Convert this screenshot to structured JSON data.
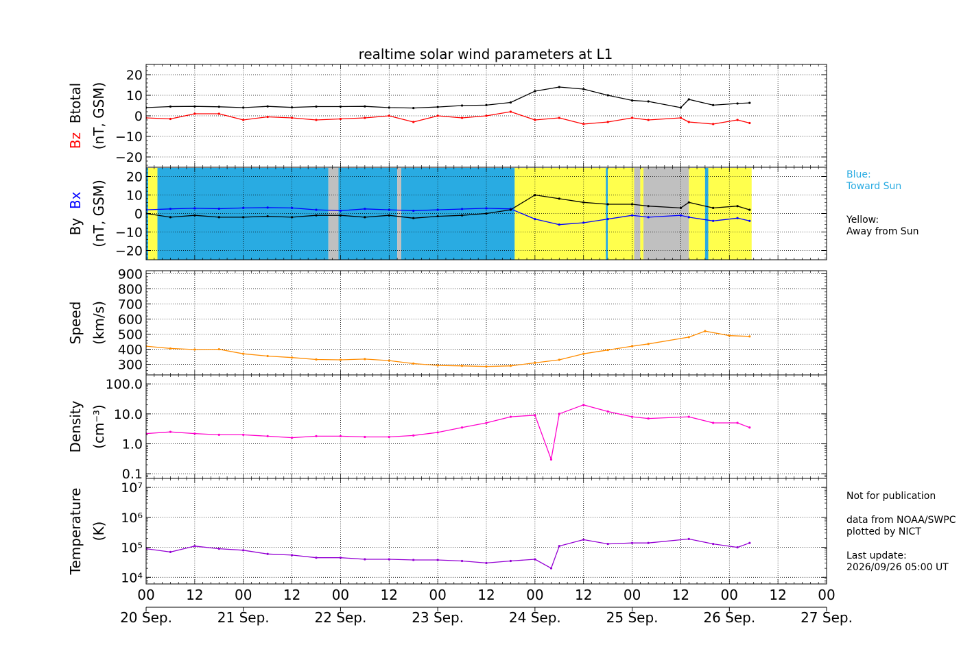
{
  "chart_data": {
    "type": "line",
    "title": "realtime solar wind parameters at L1",
    "time_axis": {
      "unit": "hours since 20 Sep. 00 UT",
      "range": [
        0,
        168
      ],
      "hour_ticks": [
        0,
        12,
        24,
        36,
        48,
        60,
        72,
        84,
        96,
        108,
        120,
        132,
        144,
        156,
        168
      ],
      "hour_labels": [
        "00",
        "12",
        "00",
        "12",
        "00",
        "12",
        "00",
        "12",
        "00",
        "12",
        "00",
        "12",
        "00",
        "12",
        "00"
      ],
      "day_labels": [
        "20 Sep.",
        "21 Sep.",
        "22 Sep.",
        "23 Sep.",
        "24 Sep.",
        "25 Sep.",
        "26 Sep.",
        "27 Sep."
      ]
    },
    "panels": [
      {
        "id": "mag",
        "ylabel_parts": [
          {
            "text": "Bz",
            "color": "#ff0000"
          },
          {
            "text": "Btotal",
            "color": "#000000"
          }
        ],
        "ylabel_unit": "(nT, GSM)",
        "scale": "linear",
        "ylim": [
          -25,
          25
        ],
        "ticks": [
          -20,
          -10,
          0,
          10,
          20
        ],
        "tick_labels": [
          "−20",
          "−10",
          "0",
          "10",
          "20"
        ],
        "series": [
          {
            "name": "Btotal",
            "color": "#000000",
            "t": [
              0,
              6,
              12,
              18,
              24,
              30,
              36,
              42,
              48,
              54,
              60,
              66,
              72,
              78,
              84,
              90,
              96,
              102,
              108,
              114,
              120,
              124,
              132,
              134,
              140,
              146,
              149
            ],
            "v": [
              4,
              4.5,
              4.6,
              4.4,
              4,
              4.6,
              4.1,
              4.5,
              4.5,
              4.6,
              4,
              3.8,
              4.3,
              5,
              5.2,
              6.5,
              12,
              14,
              13,
              10,
              7.5,
              7,
              4,
              8,
              5.2,
              6,
              6.3
            ]
          },
          {
            "name": "Bz",
            "color": "#ff0000",
            "t": [
              0,
              6,
              12,
              18,
              24,
              30,
              36,
              42,
              48,
              54,
              60,
              66,
              72,
              78,
              84,
              90,
              96,
              102,
              108,
              114,
              120,
              124,
              132,
              134,
              140,
              146,
              149
            ],
            "v": [
              -1,
              -1.5,
              1,
              1,
              -2,
              -0.5,
              -1,
              -2,
              -1.5,
              -1,
              0,
              -3,
              0,
              -1,
              0,
              2,
              -2,
              -1,
              -4,
              -3,
              -1,
              -2,
              -1,
              -3,
              -4,
              -2,
              -3.5
            ]
          }
        ]
      },
      {
        "id": "byx",
        "ylabel_parts": [
          {
            "text": "By",
            "color": "#000000"
          },
          {
            "text": "Bx",
            "color": "#0000ff"
          }
        ],
        "ylabel_unit": "(nT, GSM)",
        "scale": "linear",
        "ylim": [
          -25,
          25
        ],
        "ticks": [
          -20,
          -10,
          0,
          10,
          20
        ],
        "tick_labels": [
          "−20",
          "−10",
          "0",
          "10",
          "20"
        ],
        "sector_bands": [
          {
            "t0": 0.0,
            "t1": 0.5,
            "sector": "toward"
          },
          {
            "t0": 0.5,
            "t1": 2.8,
            "sector": "away"
          },
          {
            "t0": 2.8,
            "t1": 45.0,
            "sector": "toward"
          },
          {
            "t0": 45.0,
            "t1": 47.5,
            "sector": "gap"
          },
          {
            "t0": 47.5,
            "t1": 62.0,
            "sector": "toward"
          },
          {
            "t0": 62.0,
            "t1": 63.0,
            "sector": "gap"
          },
          {
            "t0": 63.0,
            "t1": 91.0,
            "sector": "toward"
          },
          {
            "t0": 91.0,
            "t1": 91.8,
            "sector": "away"
          },
          {
            "t0": 91.8,
            "t1": 113.5,
            "sector": "away"
          },
          {
            "t0": 113.5,
            "t1": 114.0,
            "sector": "toward"
          },
          {
            "t0": 114.0,
            "t1": 120.5,
            "sector": "away"
          },
          {
            "t0": 120.5,
            "t1": 122.0,
            "sector": "gap"
          },
          {
            "t0": 122.0,
            "t1": 122.8,
            "sector": "away"
          },
          {
            "t0": 122.8,
            "t1": 134.0,
            "sector": "gap"
          },
          {
            "t0": 134.0,
            "t1": 138.0,
            "sector": "away"
          },
          {
            "t0": 138.0,
            "t1": 138.8,
            "sector": "toward"
          },
          {
            "t0": 138.8,
            "t1": 149.5,
            "sector": "away"
          }
        ],
        "series": [
          {
            "name": "Bx",
            "color": "#0000ff",
            "t": [
              0,
              6,
              12,
              18,
              24,
              30,
              36,
              42,
              48,
              54,
              60,
              66,
              72,
              78,
              84,
              90,
              96,
              102,
              108,
              114,
              120,
              124,
              132,
              134,
              140,
              146,
              149
            ],
            "v": [
              2,
              2.5,
              2.8,
              2.6,
              3,
              3.2,
              3,
              2,
              1.5,
              2.5,
              2,
              1.5,
              2,
              2.4,
              2.8,
              2.5,
              -3,
              -6,
              -5,
              -3,
              -1,
              -2,
              -1,
              -2,
              -4,
              -2.5,
              -4
            ]
          },
          {
            "name": "By",
            "color": "#000000",
            "t": [
              0,
              6,
              12,
              18,
              24,
              30,
              36,
              42,
              48,
              54,
              60,
              66,
              72,
              78,
              84,
              90,
              96,
              102,
              108,
              114,
              120,
              124,
              132,
              134,
              140,
              146,
              149
            ],
            "v": [
              0,
              -2,
              -1,
              -2,
              -2,
              -1.5,
              -2,
              -1,
              -1,
              -2,
              -1,
              -2.5,
              -1.5,
              -1,
              0,
              2,
              10,
              8,
              6,
              5,
              5,
              4,
              3,
              6,
              3,
              4,
              2
            ]
          }
        ]
      },
      {
        "id": "speed",
        "ylabel_parts": [
          {
            "text": "Speed",
            "color": "#000000"
          }
        ],
        "ylabel_unit": "(km/s)",
        "scale": "linear",
        "ylim": [
          230,
          920
        ],
        "ticks": [
          300,
          400,
          500,
          600,
          700,
          800,
          900
        ],
        "tick_labels": [
          "300",
          "400",
          "500",
          "600",
          "700",
          "800",
          "900"
        ],
        "series": [
          {
            "name": "Speed",
            "color": "#ff8c00",
            "t": [
              0,
              6,
              12,
              18,
              24,
              30,
              36,
              42,
              48,
              54,
              60,
              66,
              72,
              78,
              84,
              90,
              96,
              102,
              108,
              114,
              120,
              124,
              134,
              138,
              144,
              149
            ],
            "v": [
              420,
              405,
              398,
              400,
              370,
              355,
              345,
              332,
              330,
              335,
              325,
              305,
              293,
              290,
              286,
              290,
              310,
              330,
              370,
              395,
              420,
              435,
              480,
              520,
              490,
              485
            ]
          }
        ]
      },
      {
        "id": "density",
        "ylabel_parts": [
          {
            "text": "Density",
            "color": "#000000"
          }
        ],
        "ylabel_unit": "(cm⁻³)",
        "scale": "log",
        "ylim": [
          0.07,
          200
        ],
        "ticks": [
          0.1,
          1.0,
          10.0,
          100.0
        ],
        "tick_labels": [
          "0.1",
          "1.0",
          "10.0",
          "100.0"
        ],
        "series": [
          {
            "name": "Density",
            "color": "#ff00cc",
            "t": [
              0,
              6,
              12,
              18,
              24,
              30,
              36,
              42,
              48,
              54,
              60,
              66,
              72,
              78,
              84,
              90,
              96,
              100,
              102,
              108,
              114,
              120,
              124,
              134,
              140,
              146,
              149
            ],
            "v": [
              2.2,
              2.5,
              2.2,
              2.0,
              2.0,
              1.8,
              1.6,
              1.8,
              1.8,
              1.7,
              1.7,
              1.9,
              2.4,
              3.5,
              5,
              8,
              9,
              0.3,
              10,
              20,
              12,
              8,
              7,
              8,
              5,
              5,
              3.5
            ]
          }
        ]
      },
      {
        "id": "temperature",
        "ylabel_parts": [
          {
            "text": "Temperature",
            "color": "#000000"
          }
        ],
        "ylabel_unit": "(K)",
        "scale": "log",
        "ylim": [
          6000,
          20000000
        ],
        "ticks": [
          10000,
          100000,
          1000000,
          10000000
        ],
        "tick_labels": [
          "10⁴",
          "10⁵",
          "10⁶",
          "10⁷"
        ],
        "series": [
          {
            "name": "Temperature",
            "color": "#9400d3",
            "t": [
              0,
              6,
              12,
              18,
              24,
              30,
              36,
              42,
              48,
              54,
              60,
              66,
              72,
              78,
              84,
              90,
              96,
              100,
              102,
              108,
              114,
              120,
              124,
              134,
              140,
              146,
              149
            ],
            "v": [
              90000,
              70000,
              110000,
              90000,
              80000,
              60000,
              55000,
              45000,
              45000,
              40000,
              40000,
              38000,
              38000,
              35000,
              30000,
              35000,
              40000,
              20000,
              110000,
              180000,
              130000,
              140000,
              140000,
              190000,
              130000,
              100000,
              140000
            ]
          }
        ]
      }
    ],
    "legend": {
      "blue": "Blue:\nToward Sun",
      "yellow": "Yellow:\nAway from Sun",
      "blue_color": "#29abe2",
      "yellow_color": "#ffff4d",
      "gap_color": "#c0c0c0"
    },
    "notes": {
      "publication": "Not for publication",
      "credit": "data from NOAA/SWPC\nplotted by NICT",
      "update": "Last update:\n2026/09/26 05:00 UT"
    }
  }
}
